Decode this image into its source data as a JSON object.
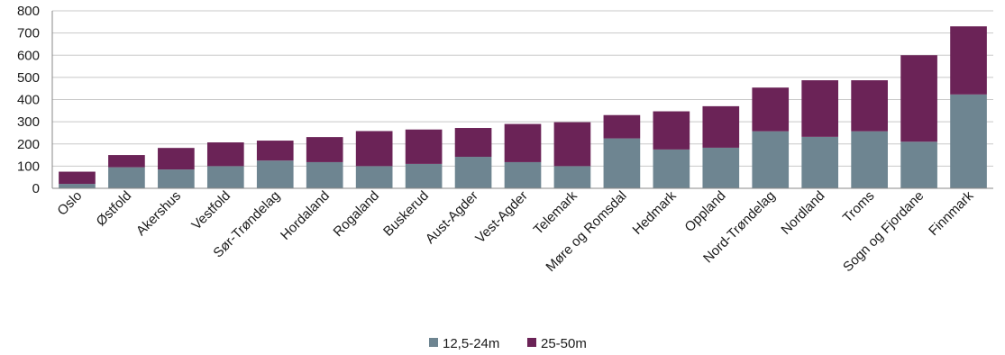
{
  "chart_data": {
    "type": "bar",
    "stacked": true,
    "categories": [
      "Oslo",
      "Østfold",
      "Akershus",
      "Vestfold",
      "Sør-Trøndelag",
      "Hordaland",
      "Rogaland",
      "Buskerud",
      "Aust-Agder",
      "Vest-Agder",
      "Telemark",
      "Møre og Romsdal",
      "Hedmark",
      "Oppland",
      "Nord-Trøndelag",
      "Nordland",
      "Troms",
      "Sogn og Fjordane",
      "Finnmark"
    ],
    "series": [
      {
        "name": "12,5-24m",
        "color": "#6e8591",
        "values": [
          20,
          95,
          85,
          100,
          125,
          118,
          100,
          110,
          142,
          118,
          100,
          225,
          175,
          183,
          257,
          232,
          257,
          210,
          423
        ]
      },
      {
        "name": "25-50m",
        "color": "#6b2357",
        "values": [
          55,
          55,
          97,
          107,
          90,
          113,
          158,
          155,
          130,
          172,
          198,
          105,
          172,
          187,
          197,
          255,
          230,
          390,
          307
        ]
      }
    ],
    "ylim": [
      0,
      800
    ],
    "yticks": [
      0,
      100,
      200,
      300,
      400,
      500,
      600,
      700,
      800
    ],
    "grid": true,
    "legend_position": "bottom"
  }
}
